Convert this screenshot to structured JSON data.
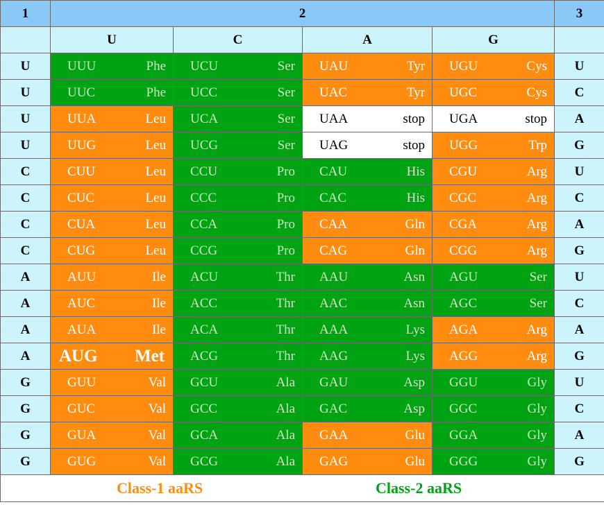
{
  "header": {
    "pos1": "1",
    "pos2": "2",
    "pos3": "3"
  },
  "columns": [
    "U",
    "C",
    "A",
    "G"
  ],
  "colors": {
    "class1": "#ff8c0e",
    "class2": "#00a312",
    "stop": "#ffffff",
    "header_dark": "#89c8f7",
    "header_light": "#ccf4fd"
  },
  "rows": [
    {
      "first": "U",
      "third": "U",
      "cells": [
        {
          "codon": "UUU",
          "aa": "Phe",
          "cls": "c2"
        },
        {
          "codon": "UCU",
          "aa": "Ser",
          "cls": "c2"
        },
        {
          "codon": "UAU",
          "aa": "Tyr",
          "cls": "c1"
        },
        {
          "codon": "UGU",
          "aa": "Cys",
          "cls": "c1"
        }
      ]
    },
    {
      "first": "U",
      "third": "C",
      "cells": [
        {
          "codon": "UUC",
          "aa": "Phe",
          "cls": "c2"
        },
        {
          "codon": "UCC",
          "aa": "Ser",
          "cls": "c2"
        },
        {
          "codon": "UAC",
          "aa": "Tyr",
          "cls": "c1"
        },
        {
          "codon": "UGC",
          "aa": "Cys",
          "cls": "c1"
        }
      ]
    },
    {
      "first": "U",
      "third": "A",
      "cells": [
        {
          "codon": "UUA",
          "aa": "Leu",
          "cls": "c1"
        },
        {
          "codon": "UCA",
          "aa": "Ser",
          "cls": "c2"
        },
        {
          "codon": "UAA",
          "aa": "stop",
          "cls": "stop"
        },
        {
          "codon": "UGA",
          "aa": "stop",
          "cls": "stop"
        }
      ]
    },
    {
      "first": "U",
      "third": "G",
      "cells": [
        {
          "codon": "UUG",
          "aa": "Leu",
          "cls": "c1"
        },
        {
          "codon": "UCG",
          "aa": "Ser",
          "cls": "c2"
        },
        {
          "codon": "UAG",
          "aa": "stop",
          "cls": "stop"
        },
        {
          "codon": "UGG",
          "aa": "Trp",
          "cls": "c1"
        }
      ]
    },
    {
      "first": "C",
      "third": "U",
      "cells": [
        {
          "codon": "CUU",
          "aa": "Leu",
          "cls": "c1"
        },
        {
          "codon": "CCU",
          "aa": "Pro",
          "cls": "c2"
        },
        {
          "codon": "CAU",
          "aa": "His",
          "cls": "c2"
        },
        {
          "codon": "CGU",
          "aa": "Arg",
          "cls": "c1"
        }
      ]
    },
    {
      "first": "C",
      "third": "C",
      "cells": [
        {
          "codon": "CUC",
          "aa": "Leu",
          "cls": "c1"
        },
        {
          "codon": "CCC",
          "aa": "Pro",
          "cls": "c2"
        },
        {
          "codon": "CAC",
          "aa": "His",
          "cls": "c2"
        },
        {
          "codon": "CGC",
          "aa": "Arg",
          "cls": "c1"
        }
      ]
    },
    {
      "first": "C",
      "third": "A",
      "cells": [
        {
          "codon": "CUA",
          "aa": "Leu",
          "cls": "c1"
        },
        {
          "codon": "CCA",
          "aa": "Pro",
          "cls": "c2"
        },
        {
          "codon": "CAA",
          "aa": "Gln",
          "cls": "c1"
        },
        {
          "codon": "CGA",
          "aa": "Arg",
          "cls": "c1"
        }
      ]
    },
    {
      "first": "C",
      "third": "G",
      "cells": [
        {
          "codon": "CUG",
          "aa": "Leu",
          "cls": "c1"
        },
        {
          "codon": "CCG",
          "aa": "Pro",
          "cls": "c2"
        },
        {
          "codon": "CAG",
          "aa": "Gln",
          "cls": "c1"
        },
        {
          "codon": "CGG",
          "aa": "Arg",
          "cls": "c1"
        }
      ]
    },
    {
      "first": "A",
      "third": "U",
      "cells": [
        {
          "codon": "AUU",
          "aa": "Ile",
          "cls": "c1"
        },
        {
          "codon": "ACU",
          "aa": "Thr",
          "cls": "c2"
        },
        {
          "codon": "AAU",
          "aa": "Asn",
          "cls": "c2"
        },
        {
          "codon": "AGU",
          "aa": "Ser",
          "cls": "c2"
        }
      ]
    },
    {
      "first": "A",
      "third": "C",
      "cells": [
        {
          "codon": "AUC",
          "aa": "Ile",
          "cls": "c1"
        },
        {
          "codon": "ACC",
          "aa": "Thr",
          "cls": "c2"
        },
        {
          "codon": "AAC",
          "aa": "Asn",
          "cls": "c2"
        },
        {
          "codon": "AGC",
          "aa": "Ser",
          "cls": "c2"
        }
      ]
    },
    {
      "first": "A",
      "third": "A",
      "cells": [
        {
          "codon": "AUA",
          "aa": "Ile",
          "cls": "c1"
        },
        {
          "codon": "ACA",
          "aa": "Thr",
          "cls": "c2"
        },
        {
          "codon": "AAA",
          "aa": "Lys",
          "cls": "c2"
        },
        {
          "codon": "AGA",
          "aa": "Arg",
          "cls": "c1"
        }
      ]
    },
    {
      "first": "A",
      "third": "G",
      "cells": [
        {
          "codon": "AUG",
          "aa": "Met",
          "cls": "c1 big"
        },
        {
          "codon": "ACG",
          "aa": "Thr",
          "cls": "c2"
        },
        {
          "codon": "AAG",
          "aa": "Lys",
          "cls": "c2"
        },
        {
          "codon": "AGG",
          "aa": "Arg",
          "cls": "c1"
        }
      ]
    },
    {
      "first": "G",
      "third": "U",
      "cells": [
        {
          "codon": "GUU",
          "aa": "Val",
          "cls": "c1"
        },
        {
          "codon": "GCU",
          "aa": "Ala",
          "cls": "c2"
        },
        {
          "codon": "GAU",
          "aa": "Asp",
          "cls": "c2"
        },
        {
          "codon": "GGU",
          "aa": "Gly",
          "cls": "c2"
        }
      ]
    },
    {
      "first": "G",
      "third": "C",
      "cells": [
        {
          "codon": "GUC",
          "aa": "Val",
          "cls": "c1"
        },
        {
          "codon": "GCC",
          "aa": "Ala",
          "cls": "c2"
        },
        {
          "codon": "GAC",
          "aa": "Asp",
          "cls": "c2"
        },
        {
          "codon": "GGC",
          "aa": "Gly",
          "cls": "c2"
        }
      ]
    },
    {
      "first": "G",
      "third": "A",
      "cells": [
        {
          "codon": "GUA",
          "aa": "Val",
          "cls": "c1"
        },
        {
          "codon": "GCA",
          "aa": "Ala",
          "cls": "c2"
        },
        {
          "codon": "GAA",
          "aa": "Glu",
          "cls": "c1"
        },
        {
          "codon": "GGA",
          "aa": "Gly",
          "cls": "c2"
        }
      ]
    },
    {
      "first": "G",
      "third": "G",
      "cells": [
        {
          "codon": "GUG",
          "aa": "Val",
          "cls": "c1"
        },
        {
          "codon": "GCG",
          "aa": "Ala",
          "cls": "c2"
        },
        {
          "codon": "GAG",
          "aa": "Glu",
          "cls": "c1"
        },
        {
          "codon": "GGG",
          "aa": "Gly",
          "cls": "c2"
        }
      ]
    }
  ],
  "legend": {
    "class1": "Class-1 aaRS",
    "class2": "Class-2 aaRS"
  }
}
